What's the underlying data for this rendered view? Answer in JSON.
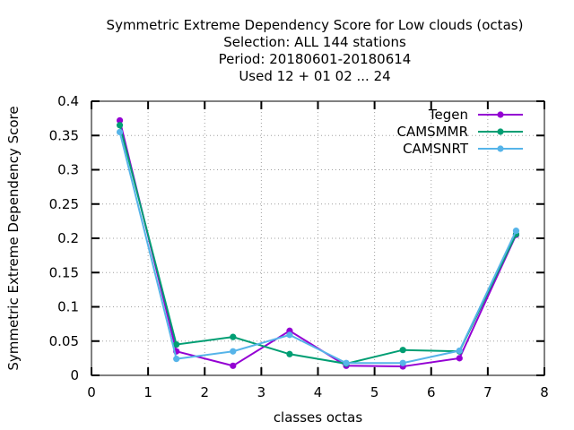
{
  "title_lines": [
    "Symmetric Extreme Dependency Score  for Low clouds (octas)",
    "Selection: ALL    144 stations",
    "Period: 20180601-20180614",
    "Used  12 + 01 02 ... 24"
  ],
  "chart_data": {
    "type": "line",
    "xlabel": "classes octas",
    "ylabel": "Symmetric Extreme Dependency Score",
    "xlim": [
      0,
      8
    ],
    "ylim": [
      0,
      0.4
    ],
    "x_ticks": [
      0,
      1,
      2,
      3,
      4,
      5,
      6,
      7,
      8
    ],
    "y_ticks": [
      0,
      0.05,
      0.1,
      0.15,
      0.2,
      0.25,
      0.3,
      0.35,
      0.4
    ],
    "x_tick_labels": [
      "0",
      "1",
      "2",
      "3",
      "4",
      "5",
      "6",
      "7",
      "8"
    ],
    "y_tick_labels": [
      "0",
      "0.05",
      "0.1",
      "0.15",
      "0.2",
      "0.25",
      "0.3",
      "0.35",
      "0.4"
    ],
    "grid": true,
    "legend_position": "top-right",
    "x": [
      0.5,
      1.5,
      2.5,
      3.5,
      4.5,
      5.5,
      6.5,
      7.5
    ],
    "series": [
      {
        "name": "Tegen",
        "color": "#9400d3",
        "values": [
          0.372,
          0.035,
          0.014,
          0.065,
          0.014,
          0.013,
          0.025,
          0.205
        ]
      },
      {
        "name": "CAMSMMR",
        "color": "#009e73",
        "values": [
          0.365,
          0.045,
          0.056,
          0.031,
          0.017,
          0.037,
          0.035,
          0.206
        ]
      },
      {
        "name": "CAMSNRT",
        "color": "#56b4e9",
        "values": [
          0.355,
          0.024,
          0.035,
          0.059,
          0.018,
          0.018,
          0.036,
          0.211
        ]
      }
    ]
  }
}
